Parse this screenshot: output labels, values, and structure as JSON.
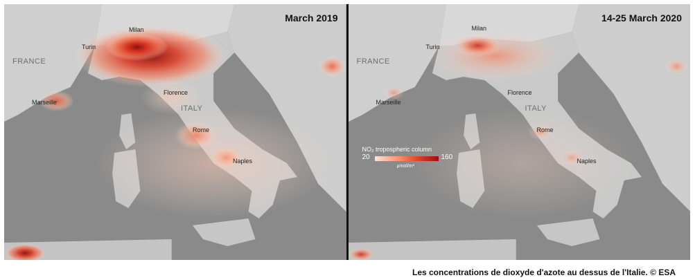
{
  "panels": [
    {
      "title": "March 2019",
      "places": {
        "milan": "Milan",
        "turin": "Turin",
        "marseille": "Marseille",
        "florence": "Florence",
        "rome": "Rome",
        "naples": "Naples"
      },
      "countries": {
        "france": "FRANCE",
        "italy": "ITALY"
      }
    },
    {
      "title": "14-25 March 2020",
      "places": {
        "milan": "Milan",
        "turin": "Turin",
        "marseille": "Marseille",
        "florence": "Florence",
        "rome": "Rome",
        "naples": "Naples"
      },
      "countries": {
        "france": "FRANCE",
        "italy": "ITALY"
      },
      "legend": {
        "title": "NO₂ tropospheric column",
        "min": "20",
        "max": "160",
        "unit": "µmol/m²"
      }
    }
  ],
  "caption": "Les concentrations de dioxyde d'azote au dessus de l'Italie. © ESA",
  "colors": {
    "sea": "#8a8a8a",
    "land": "#c9c9c9",
    "no2_low": "#fde3d4",
    "no2_high": "#9b0f0f"
  }
}
